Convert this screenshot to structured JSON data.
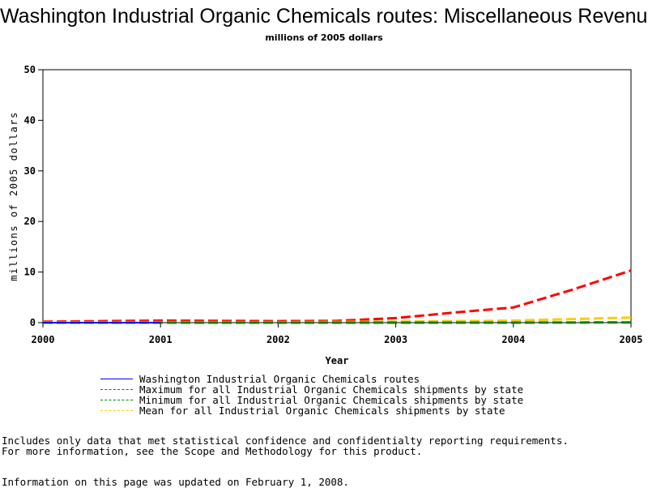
{
  "chart_data": {
    "type": "line",
    "title": "Washington Industrial Organic Chemicals routes: Miscellaneous Revenue",
    "subtitle": "millions of 2005 dollars",
    "xlabel": "Year",
    "ylabel": "millions of 2005 dollars",
    "xlim": [
      2000,
      2005
    ],
    "ylim": [
      0,
      50
    ],
    "xticks": [
      "2000",
      "2001",
      "2002",
      "2003",
      "2004",
      "2005"
    ],
    "yticks": [
      "0",
      "10",
      "20",
      "30",
      "40",
      "50"
    ],
    "legend_position": "bottom",
    "series": [
      {
        "name": "Washington Industrial Organic Chemicals routes",
        "color": "#0000ff",
        "dash": "solid",
        "x": [
          2000,
          2001
        ],
        "y": [
          0.0,
          0.0
        ]
      },
      {
        "name": "Maximum for all Industrial Organic Chemicals shipments by state",
        "color": "#ff0000",
        "dash": "dashed",
        "x": [
          2000,
          2000.5,
          2001,
          2001.5,
          2002,
          2002.5,
          2003,
          2003.5,
          2004,
          2004.5,
          2005
        ],
        "y": [
          0.2,
          0.3,
          0.4,
          0.35,
          0.3,
          0.35,
          0.9,
          2.0,
          3.0,
          6.5,
          10.3
        ]
      },
      {
        "name": "Minimum for all Industrial Organic Chemicals shipments by state",
        "color": "#008000",
        "dash": "dashed",
        "x": [
          2000,
          2001,
          2002,
          2003,
          2004,
          2005
        ],
        "y": [
          0.0,
          0.0,
          0.0,
          0.0,
          0.0,
          0.05
        ]
      },
      {
        "name": "Mean for all Industrial Organic Chemicals shipments by state",
        "color": "#ffcc00",
        "dash": "dashed",
        "x": [
          2000,
          2001,
          2002,
          2003,
          2004,
          2004.5,
          2005
        ],
        "y": [
          0.1,
          0.1,
          0.1,
          0.2,
          0.4,
          0.7,
          1.0
        ]
      }
    ]
  },
  "notes": {
    "line1": "Includes only data that met statistical confidence and confidentialty reporting requirements.",
    "line2": "For more information, see the Scope and Methodology for this product.",
    "updated": "Information on this page was updated on February 1, 2008."
  }
}
